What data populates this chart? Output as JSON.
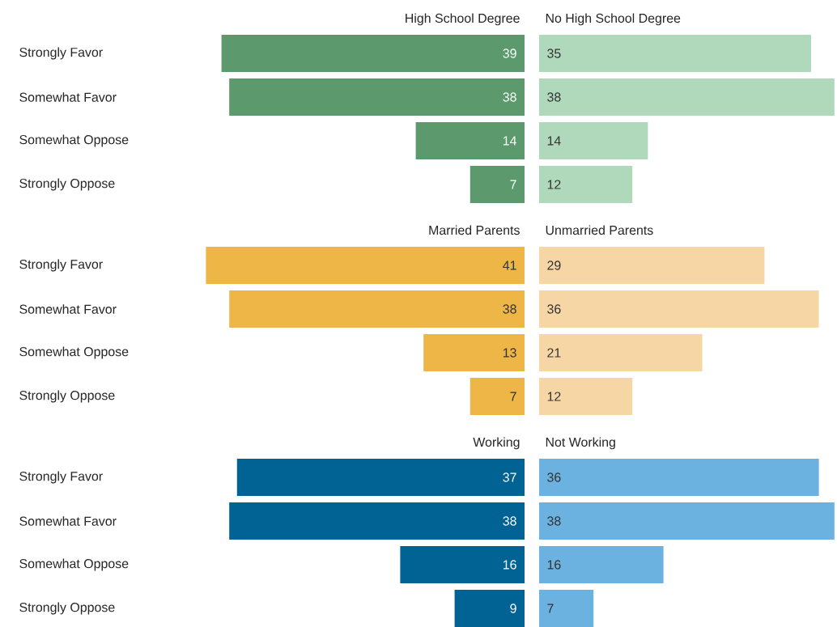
{
  "chart_data": [
    {
      "type": "bar",
      "orientation": "horizontal",
      "data_labels": true,
      "categories": [
        "Strongly Favor",
        "Somewhat Favor",
        "Somewhat Oppose",
        "Strongly Oppose"
      ],
      "series": [
        {
          "name": "High School Degree",
          "color": "#5c9a6e",
          "values": [
            39,
            38,
            14,
            7
          ]
        }
      ]
    },
    {
      "type": "bar",
      "orientation": "horizontal",
      "data_labels": true,
      "categories": [
        null,
        null,
        null,
        null
      ],
      "series": [
        {
          "name": "No High School Degree",
          "color": "#b0d9bb",
          "values": [
            35,
            38,
            14,
            12
          ]
        }
      ]
    },
    {
      "type": "bar",
      "orientation": "horizontal",
      "data_labels": true,
      "categories": [
        "Strongly Favor",
        "Somewhat Favor",
        "Somewhat Oppose",
        "Strongly Oppose"
      ],
      "series": [
        {
          "name": "Married Parents",
          "color": "#edb647",
          "values": [
            41,
            38,
            13,
            7
          ]
        }
      ]
    },
    {
      "type": "bar",
      "orientation": "horizontal",
      "data_labels": true,
      "categories": [
        null,
        null,
        null,
        null
      ],
      "series": [
        {
          "name": "Unmarried Parents",
          "color": "#f7d6a6",
          "values": [
            29,
            36,
            21,
            12
          ]
        }
      ]
    },
    {
      "type": "bar",
      "orientation": "horizontal",
      "data_labels": true,
      "categories": [
        "Strongly Favor",
        "Somewhat Favor",
        "Somewhat Oppose",
        "Strongly Oppose"
      ],
      "series": [
        {
          "name": "Working",
          "color": "#006394",
          "values": [
            37,
            38,
            16,
            9
          ]
        }
      ]
    },
    {
      "type": "bar",
      "orientation": "horizontal",
      "data_labels": true,
      "categories": [
        null,
        null,
        null,
        null
      ],
      "series": [
        {
          "name": "Not Working",
          "color": "#6cb2e1",
          "values": [
            36,
            38,
            16,
            7
          ]
        }
      ]
    }
  ]
}
